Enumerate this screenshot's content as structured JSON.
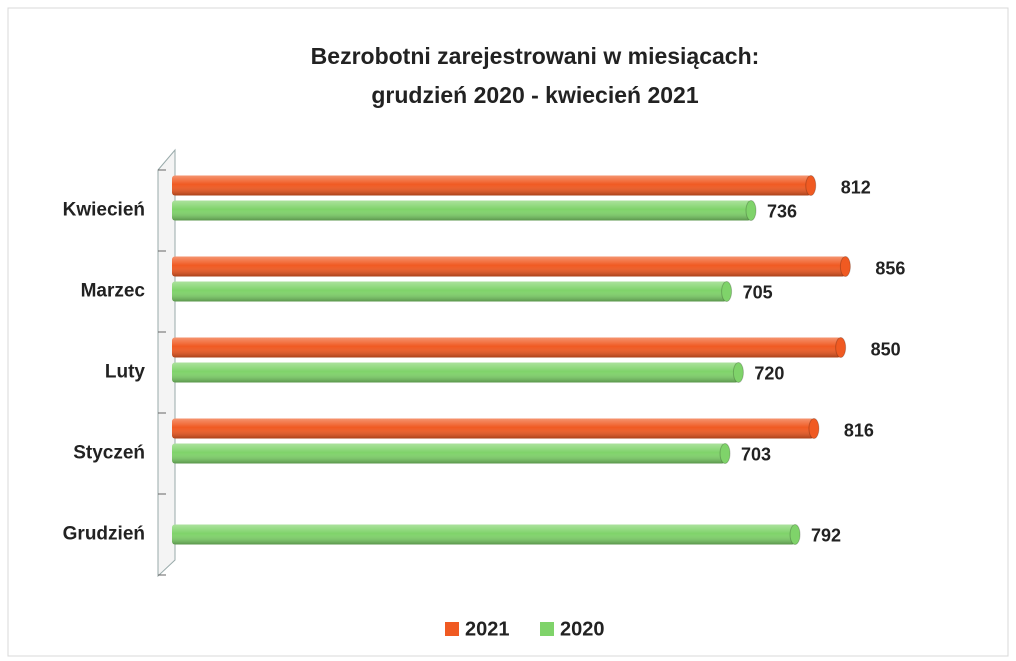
{
  "chart_data": {
    "type": "bar",
    "orientation": "horizontal",
    "title": [
      "Bezrobotni zarejestrowani w miesiącach:",
      "grudzień 2020 - kwiecień 2021"
    ],
    "categories": [
      "Kwiecień",
      "Marzec",
      "Luty",
      "Styczeń",
      "Grudzień"
    ],
    "series": [
      {
        "name": "2021",
        "color": "#f05a22",
        "values": [
          812,
          856,
          850,
          816,
          null
        ]
      },
      {
        "name": "2020",
        "color": "#7fd36a",
        "values": [
          736,
          705,
          720,
          703,
          792
        ]
      }
    ],
    "xlim": [
      0,
      900
    ],
    "legend": "bottom"
  }
}
